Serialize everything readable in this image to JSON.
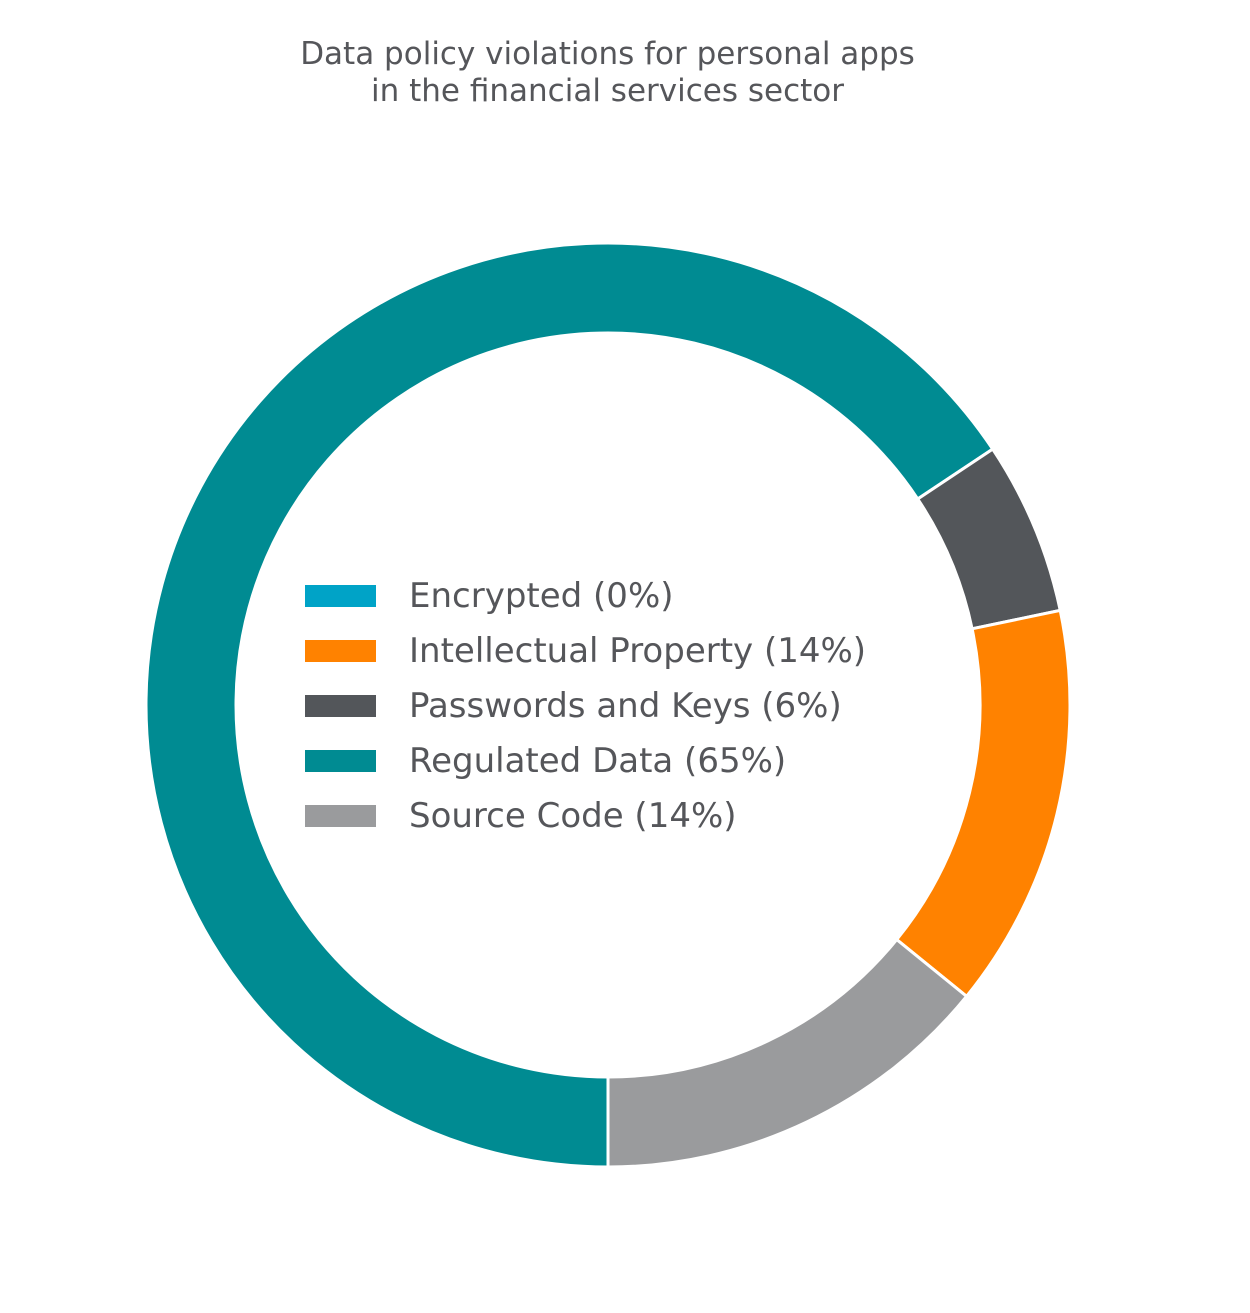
{
  "chart_data": {
    "type": "pie",
    "donut": true,
    "title": "Data policy violations for personal apps\nin the financial services sector",
    "title_lines": [
      "Data policy violations for personal apps",
      "in the financial services sector"
    ],
    "categories": [
      "Encrypted",
      "Intellectual Property",
      "Passwords and Keys",
      "Regulated Data",
      "Source Code"
    ],
    "values": [
      0,
      14,
      6,
      65,
      14
    ],
    "colors": [
      "#00a3c7",
      "#ff8200",
      "#53565a",
      "#008b92",
      "#9a9b9d"
    ],
    "legend": {
      "placement": "center",
      "labels": [
        "Encrypted (0%)",
        "Intellectual Property (14%)",
        "Passwords and Keys (6%)",
        "Regulated Data (65%)",
        "Source Code (14%)"
      ]
    }
  }
}
